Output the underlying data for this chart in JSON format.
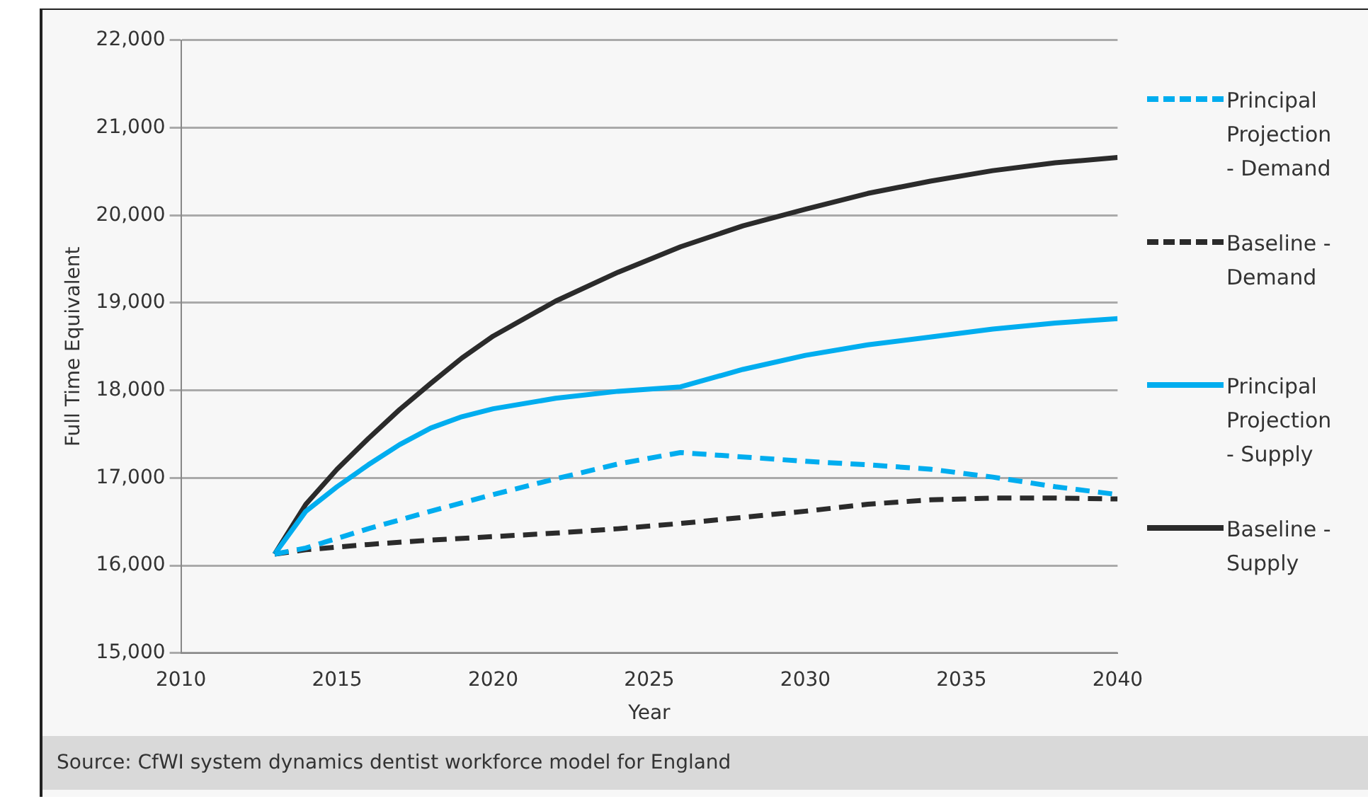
{
  "chart_data": {
    "type": "line",
    "xlabel": "Year",
    "ylabel": "Full Time Equivalent",
    "xlim": [
      2010,
      2040
    ],
    "xticks": [
      2010,
      2015,
      2020,
      2025,
      2030,
      2035,
      2040
    ],
    "ylim": [
      15000,
      22000
    ],
    "yticks": [
      {
        "value": 15000,
        "label": "15,000"
      },
      {
        "value": 16000,
        "label": "16,000"
      },
      {
        "value": 17000,
        "label": "17,000"
      },
      {
        "value": 18000,
        "label": "18,000"
      },
      {
        "value": 19000,
        "label": "19,000"
      },
      {
        "value": 20000,
        "label": "20,000"
      },
      {
        "value": 21000,
        "label": "21,000"
      },
      {
        "value": 22000,
        "label": "22,000"
      }
    ],
    "grid": "y",
    "legend": "right",
    "marker": "none",
    "series": [
      {
        "name": "Principal Projection - Demand",
        "color": "#00adef",
        "line_style": "dashed",
        "x": [
          2013,
          2014,
          2016,
          2018,
          2020,
          2022,
          2024,
          2026,
          2028,
          2030,
          2032,
          2034,
          2036,
          2038,
          2040
        ],
        "values": [
          16130,
          16200,
          16420,
          16620,
          16810,
          16990,
          17160,
          17290,
          17240,
          17190,
          17150,
          17100,
          17010,
          16900,
          16810
        ]
      },
      {
        "name": "Baseline - Demand",
        "color": "#2b2b2b",
        "line_style": "dashed",
        "x": [
          2013,
          2014,
          2016,
          2018,
          2020,
          2022,
          2024,
          2026,
          2028,
          2030,
          2032,
          2034,
          2036,
          2038,
          2040
        ],
        "values": [
          16130,
          16180,
          16240,
          16290,
          16330,
          16370,
          16420,
          16480,
          16550,
          16620,
          16700,
          16750,
          16770,
          16770,
          16760
        ]
      },
      {
        "name": "Principal Projection - Supply",
        "color": "#00adef",
        "line_style": "solid",
        "x": [
          2013,
          2014,
          2015,
          2016,
          2017,
          2018,
          2019,
          2020,
          2022,
          2024,
          2026,
          2028,
          2030,
          2032,
          2034,
          2036,
          2038,
          2040
        ],
        "values": [
          16130,
          16620,
          16900,
          17150,
          17380,
          17570,
          17700,
          17790,
          17910,
          17990,
          18040,
          18240,
          18400,
          18520,
          18610,
          18700,
          18770,
          18820
        ]
      },
      {
        "name": "Baseline - Supply",
        "color": "#2b2b2b",
        "line_style": "solid",
        "x": [
          2013,
          2014,
          2015,
          2016,
          2017,
          2018,
          2019,
          2020,
          2022,
          2024,
          2026,
          2028,
          2030,
          2032,
          2034,
          2036,
          2038,
          2040
        ],
        "values": [
          16130,
          16700,
          17100,
          17450,
          17780,
          18080,
          18370,
          18620,
          19020,
          19350,
          19640,
          19880,
          20070,
          20250,
          20390,
          20510,
          20600,
          20660
        ]
      }
    ],
    "annotations": [
      "Source: CfWI system dynamics dentist workforce model for England"
    ]
  }
}
